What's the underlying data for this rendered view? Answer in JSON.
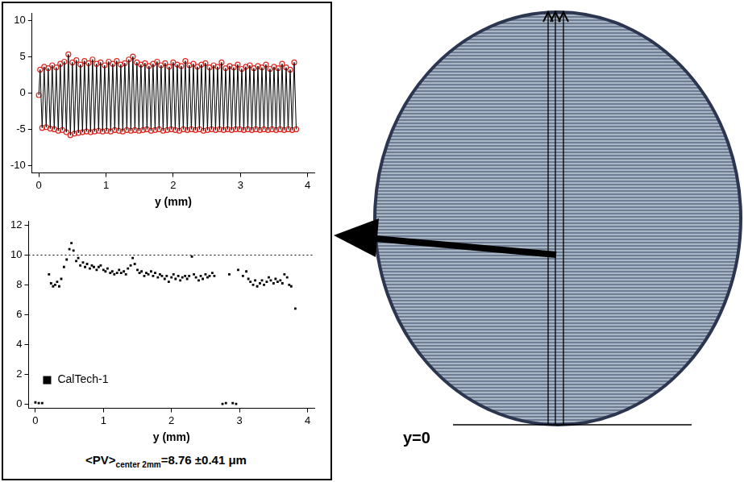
{
  "chart_data": [
    {
      "type": "line",
      "xlabel": "y (mm)",
      "xlim": [
        -0.1,
        4.1
      ],
      "xticks": [
        0,
        1,
        2,
        3,
        4
      ],
      "ylim": [
        -11,
        11
      ],
      "yticks": [
        -10,
        -5,
        0,
        5,
        10
      ],
      "grid": false,
      "x": [
        0,
        0.02,
        0.05,
        0.08,
        0.11,
        0.14,
        0.17,
        0.2,
        0.23,
        0.26,
        0.29,
        0.32,
        0.35,
        0.38,
        0.41,
        0.44,
        0.47,
        0.5,
        0.53,
        0.56,
        0.59,
        0.62,
        0.65,
        0.68,
        0.71,
        0.74,
        0.77,
        0.8,
        0.83,
        0.86,
        0.89,
        0.92,
        0.95,
        0.98,
        1.01,
        1.04,
        1.07,
        1.1,
        1.13,
        1.16,
        1.19,
        1.22,
        1.25,
        1.28,
        1.31,
        1.34,
        1.37,
        1.4,
        1.43,
        1.46,
        1.49,
        1.52,
        1.55,
        1.58,
        1.61,
        1.64,
        1.67,
        1.7,
        1.73,
        1.76,
        1.79,
        1.82,
        1.85,
        1.88,
        1.91,
        1.94,
        1.97,
        2.0,
        2.03,
        2.06,
        2.09,
        2.12,
        2.15,
        2.18,
        2.21,
        2.24,
        2.27,
        2.3,
        2.33,
        2.36,
        2.39,
        2.42,
        2.45,
        2.48,
        2.51,
        2.54,
        2.57,
        2.6,
        2.63,
        2.66,
        2.69,
        2.72,
        2.75,
        2.78,
        2.81,
        2.84,
        2.87,
        2.9,
        2.93,
        2.96,
        2.99,
        3.02,
        3.05,
        3.08,
        3.11,
        3.14,
        3.17,
        3.2,
        3.23,
        3.26,
        3.29,
        3.32,
        3.35,
        3.38,
        3.41,
        3.44,
        3.47,
        3.5,
        3.53,
        3.56,
        3.59,
        3.62,
        3.65,
        3.68,
        3.71,
        3.74,
        3.77,
        3.8,
        3.83
      ],
      "series": [
        {
          "type": "line",
          "color": "#000000",
          "values": [
            -0.3,
            3.2,
            -4.8,
            3.6,
            -4.7,
            3.4,
            -4.9,
            3.8,
            -5.0,
            3.5,
            -5.2,
            4.0,
            -5.1,
            4.3,
            -5.4,
            5.3,
            -5.8,
            4.2,
            -5.6,
            4.5,
            -5.5,
            3.9,
            -5.4,
            4.4,
            -5.3,
            4.1,
            -5.4,
            4.6,
            -5.3,
            4.0,
            -5.2,
            4.2,
            -5.3,
            3.8,
            -5.2,
            4.3,
            -5.3,
            4.0,
            -5.1,
            4.4,
            -5.2,
            3.9,
            -5.3,
            4.1,
            -5.1,
            4.6,
            -5.2,
            5.0,
            -5.1,
            4.2,
            -5.2,
            3.9,
            -5.1,
            4.1,
            -5.0,
            3.7,
            -5.2,
            4.0,
            -5.1,
            4.3,
            -5.0,
            3.8,
            -5.2,
            4.1,
            -5.1,
            3.6,
            -5.0,
            4.2,
            -5.1,
            3.9,
            -5.2,
            3.7,
            -5.0,
            4.4,
            -5.1,
            3.8,
            -5.0,
            4.0,
            -5.1,
            3.6,
            -5.0,
            3.9,
            -5.2,
            4.1,
            -5.1,
            3.5,
            -5.0,
            3.8,
            -5.1,
            3.6,
            -5.0,
            4.2,
            -5.1,
            3.4,
            -5.0,
            3.7,
            -5.1,
            3.5,
            -5.0,
            3.9,
            -5.0,
            3.3,
            -5.1,
            3.6,
            -5.0,
            3.8,
            -5.1,
            3.4,
            -5.0,
            3.7,
            -5.1,
            3.5,
            -5.0,
            3.9,
            -5.1,
            3.3,
            -5.0,
            3.6,
            -5.1,
            3.4,
            -5.0,
            4.0,
            -5.1,
            3.5,
            -5.0,
            3.2,
            -5.1,
            4.2,
            -5.0
          ]
        },
        {
          "type": "scatter",
          "color": "#e0261e",
          "marker": "circle",
          "values": [
            -0.3,
            3.2,
            -4.8,
            3.6,
            -4.7,
            3.4,
            -4.9,
            3.8,
            -5.0,
            3.5,
            -5.2,
            4.0,
            -5.1,
            4.3,
            -5.4,
            5.3,
            -5.8,
            4.2,
            -5.6,
            4.5,
            -5.5,
            3.9,
            -5.4,
            4.4,
            -5.3,
            4.1,
            -5.4,
            4.6,
            -5.3,
            4.0,
            -5.2,
            4.2,
            -5.3,
            3.8,
            -5.2,
            4.3,
            -5.3,
            4.0,
            -5.1,
            4.4,
            -5.2,
            3.9,
            -5.3,
            4.1,
            -5.1,
            4.6,
            -5.2,
            5.0,
            -5.1,
            4.2,
            -5.2,
            3.9,
            -5.1,
            4.1,
            -5.0,
            3.7,
            -5.2,
            4.0,
            -5.1,
            4.3,
            -5.0,
            3.8,
            -5.2,
            4.1,
            -5.1,
            3.6,
            -5.0,
            4.2,
            -5.1,
            3.9,
            -5.2,
            3.7,
            -5.0,
            4.4,
            -5.1,
            3.8,
            -5.0,
            4.0,
            -5.1,
            3.6,
            -5.0,
            3.9,
            -5.2,
            4.1,
            -5.1,
            3.5,
            -5.0,
            3.8,
            -5.1,
            3.6,
            -5.0,
            4.2,
            -5.1,
            3.4,
            -5.0,
            3.7,
            -5.1,
            3.5,
            -5.0,
            3.9,
            -5.0,
            3.3,
            -5.1,
            3.6,
            -5.0,
            3.8,
            -5.1,
            3.4,
            -5.0,
            3.7,
            -5.1,
            3.5,
            -5.0,
            3.9,
            -5.1,
            3.3,
            -5.0,
            3.6,
            -5.1,
            3.4,
            -5.0,
            4.0,
            -5.1,
            3.5,
            -5.0,
            3.2,
            -5.1,
            4.2,
            -5.0
          ]
        }
      ]
    },
    {
      "type": "scatter",
      "xlabel": "y (mm)",
      "xlim": [
        -0.1,
        4.1
      ],
      "xticks": [
        0,
        1,
        2,
        3,
        4
      ],
      "ylim": [
        -0.3,
        12.3
      ],
      "yticks": [
        0,
        2,
        4,
        6,
        8,
        10,
        12
      ],
      "grid": false,
      "legend": "lower left",
      "reference_line": {
        "value": 10,
        "line_style": "dotted"
      },
      "x": [
        0,
        0.05,
        0.1,
        0.2,
        0.23,
        0.26,
        0.29,
        0.32,
        0.35,
        0.38,
        0.42,
        0.46,
        0.5,
        0.53,
        0.56,
        0.6,
        0.63,
        0.66,
        0.7,
        0.73,
        0.76,
        0.8,
        0.83,
        0.86,
        0.9,
        0.93,
        0.96,
        1.0,
        1.03,
        1.06,
        1.1,
        1.13,
        1.16,
        1.2,
        1.23,
        1.26,
        1.3,
        1.33,
        1.36,
        1.4,
        1.43,
        1.46,
        1.5,
        1.53,
        1.56,
        1.6,
        1.63,
        1.66,
        1.7,
        1.73,
        1.76,
        1.8,
        1.83,
        1.86,
        1.9,
        1.93,
        1.96,
        2.0,
        2.03,
        2.06,
        2.1,
        2.13,
        2.16,
        2.2,
        2.23,
        2.26,
        2.3,
        2.33,
        2.36,
        2.4,
        2.43,
        2.46,
        2.5,
        2.53,
        2.56,
        2.6,
        2.63,
        2.75,
        2.8,
        2.85,
        2.9,
        2.95,
        2.98,
        3.05,
        3.1,
        3.13,
        3.16,
        3.2,
        3.23,
        3.26,
        3.3,
        3.33,
        3.36,
        3.4,
        3.43,
        3.46,
        3.5,
        3.53,
        3.56,
        3.6,
        3.63,
        3.66,
        3.7,
        3.73,
        3.76,
        3.82
      ],
      "series": [
        {
          "name": "CalTech-1",
          "color": "#000000",
          "marker": "square",
          "values": [
            0.1,
            0.05,
            0.05,
            8.7,
            8.1,
            7.9,
            8.0,
            8.2,
            7.9,
            8.4,
            9.2,
            9.7,
            10.4,
            10.8,
            10.3,
            9.6,
            9.8,
            9.3,
            9.5,
            9.2,
            9.4,
            9.1,
            9.3,
            9.2,
            9.0,
            9.2,
            9.3,
            9.0,
            8.9,
            9.1,
            8.8,
            8.9,
            8.7,
            8.8,
            9.0,
            8.8,
            8.9,
            8.7,
            9.1,
            9.3,
            9.8,
            9.4,
            9.0,
            8.8,
            8.9,
            8.6,
            8.8,
            8.7,
            8.9,
            8.6,
            8.8,
            8.5,
            8.7,
            8.6,
            8.4,
            8.6,
            8.2,
            8.5,
            8.7,
            8.4,
            8.6,
            8.3,
            8.5,
            8.6,
            8.4,
            8.6,
            9.9,
            8.7,
            8.5,
            8.3,
            8.6,
            8.4,
            8.7,
            8.5,
            8.6,
            8.8,
            8.6,
            0.0,
            0.05,
            8.7,
            0.05,
            0.0,
            9.0,
            8.6,
            8.9,
            8.4,
            8.2,
            8.0,
            8.3,
            7.9,
            8.1,
            8.3,
            8.0,
            8.2,
            8.5,
            8.3,
            8.1,
            8.4,
            8.2,
            8.3,
            8.1,
            8.7,
            8.5,
            8.0,
            7.9,
            6.4
          ]
        }
      ],
      "annotations": [
        {
          "text": "<PV>",
          "subscript": "center 2mm",
          "suffix": "=8.76 ±0.41 μm"
        }
      ]
    }
  ],
  "image_label": "y=0"
}
